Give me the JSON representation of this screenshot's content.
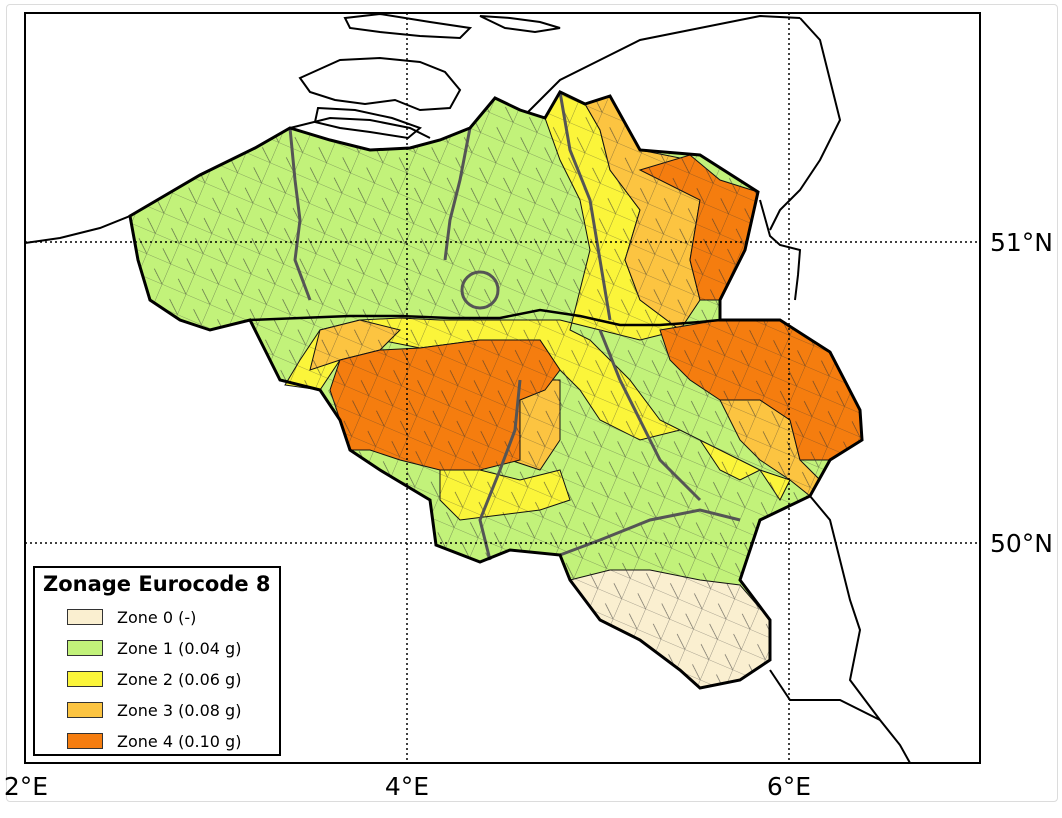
{
  "map": {
    "title": "",
    "lon_ticks": [
      "2°E",
      "4°E",
      "6°E"
    ],
    "lat_ticks": [
      "51°N",
      "50°N"
    ]
  },
  "legend": {
    "title": "Zonage Eurocode 8",
    "items": [
      {
        "label": "Zone 0 (-)",
        "color": "#faefd0"
      },
      {
        "label": "Zone 1 (0.04 g)",
        "color": "#c2f27a"
      },
      {
        "label": "Zone 2 (0.06 g)",
        "color": "#fbf53a"
      },
      {
        "label": "Zone 3 (0.08 g)",
        "color": "#fcc441"
      },
      {
        "label": "Zone 4 (0.10 g)",
        "color": "#f57d0f"
      }
    ]
  }
}
